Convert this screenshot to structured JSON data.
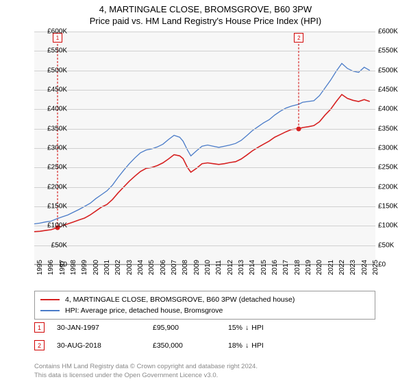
{
  "title": {
    "main": "4, MARTINGALE CLOSE, BROMSGROVE, B60 3PW",
    "sub": "Price paid vs. HM Land Registry's House Price Index (HPI)"
  },
  "chart": {
    "type": "line",
    "background_color": "#f7f7f7",
    "grid_color": "#d0d0d0",
    "ylim": [
      0,
      600000
    ],
    "ytick_step": 50000,
    "yticks": [
      "£0",
      "£50K",
      "£100K",
      "£150K",
      "£200K",
      "£250K",
      "£300K",
      "£350K",
      "£400K",
      "£450K",
      "£500K",
      "£550K",
      "£600K"
    ],
    "x_years": [
      1995,
      1996,
      1997,
      1998,
      1999,
      2000,
      2001,
      2002,
      2003,
      2004,
      2005,
      2006,
      2007,
      2008,
      2009,
      2010,
      2011,
      2012,
      2013,
      2014,
      2015,
      2016,
      2017,
      2018,
      2019,
      2020,
      2021,
      2022,
      2023,
      2024,
      2025
    ],
    "xlim": [
      1995,
      2025.5
    ],
    "series": [
      {
        "name": "price_paid",
        "label": "4, MARTINGALE CLOSE, BROMSGROVE, B60 3PW (detached house)",
        "color": "#d62020",
        "line_width": 1.6,
        "points": [
          [
            1995.0,
            85000
          ],
          [
            1995.5,
            86000
          ],
          [
            1996.0,
            88000
          ],
          [
            1996.5,
            90000
          ],
          [
            1997.1,
            95900
          ],
          [
            1997.5,
            100000
          ],
          [
            1998.0,
            105000
          ],
          [
            1998.5,
            110000
          ],
          [
            1999.0,
            115000
          ],
          [
            1999.5,
            120000
          ],
          [
            2000.0,
            128000
          ],
          [
            2000.5,
            138000
          ],
          [
            2001.0,
            148000
          ],
          [
            2001.5,
            155000
          ],
          [
            2002.0,
            168000
          ],
          [
            2002.5,
            185000
          ],
          [
            2003.0,
            200000
          ],
          [
            2003.5,
            215000
          ],
          [
            2004.0,
            228000
          ],
          [
            2004.5,
            240000
          ],
          [
            2005.0,
            248000
          ],
          [
            2005.5,
            250000
          ],
          [
            2006.0,
            255000
          ],
          [
            2006.5,
            262000
          ],
          [
            2007.0,
            272000
          ],
          [
            2007.5,
            283000
          ],
          [
            2008.0,
            280000
          ],
          [
            2008.3,
            273000
          ],
          [
            2008.7,
            250000
          ],
          [
            2009.0,
            238000
          ],
          [
            2009.5,
            248000
          ],
          [
            2010.0,
            260000
          ],
          [
            2010.5,
            262000
          ],
          [
            2011.0,
            260000
          ],
          [
            2011.5,
            258000
          ],
          [
            2012.0,
            260000
          ],
          [
            2012.5,
            263000
          ],
          [
            2013.0,
            265000
          ],
          [
            2013.5,
            272000
          ],
          [
            2014.0,
            282000
          ],
          [
            2014.5,
            293000
          ],
          [
            2015.0,
            302000
          ],
          [
            2015.5,
            310000
          ],
          [
            2016.0,
            318000
          ],
          [
            2016.5,
            328000
          ],
          [
            2017.0,
            335000
          ],
          [
            2017.5,
            342000
          ],
          [
            2018.0,
            348000
          ],
          [
            2018.66,
            350000
          ],
          [
            2019.0,
            353000
          ],
          [
            2019.5,
            355000
          ],
          [
            2020.0,
            358000
          ],
          [
            2020.5,
            368000
          ],
          [
            2021.0,
            385000
          ],
          [
            2021.5,
            400000
          ],
          [
            2022.0,
            420000
          ],
          [
            2022.5,
            438000
          ],
          [
            2023.0,
            428000
          ],
          [
            2023.5,
            423000
          ],
          [
            2024.0,
            420000
          ],
          [
            2024.5,
            425000
          ],
          [
            2025.0,
            420000
          ]
        ]
      },
      {
        "name": "hpi",
        "label": "HPI: Average price, detached house, Bromsgrove",
        "color": "#4a7bc8",
        "line_width": 1.3,
        "points": [
          [
            1995.0,
            105000
          ],
          [
            1995.5,
            107000
          ],
          [
            1996.0,
            110000
          ],
          [
            1996.5,
            112000
          ],
          [
            1997.0,
            118000
          ],
          [
            1997.5,
            123000
          ],
          [
            1998.0,
            128000
          ],
          [
            1998.5,
            135000
          ],
          [
            1999.0,
            142000
          ],
          [
            1999.5,
            150000
          ],
          [
            2000.0,
            158000
          ],
          [
            2000.5,
            170000
          ],
          [
            2001.0,
            180000
          ],
          [
            2001.5,
            190000
          ],
          [
            2002.0,
            205000
          ],
          [
            2002.5,
            225000
          ],
          [
            2003.0,
            243000
          ],
          [
            2003.5,
            260000
          ],
          [
            2004.0,
            275000
          ],
          [
            2004.5,
            288000
          ],
          [
            2005.0,
            295000
          ],
          [
            2005.5,
            298000
          ],
          [
            2006.0,
            303000
          ],
          [
            2006.5,
            310000
          ],
          [
            2007.0,
            322000
          ],
          [
            2007.5,
            333000
          ],
          [
            2008.0,
            328000
          ],
          [
            2008.3,
            318000
          ],
          [
            2008.7,
            295000
          ],
          [
            2009.0,
            280000
          ],
          [
            2009.5,
            293000
          ],
          [
            2010.0,
            305000
          ],
          [
            2010.5,
            308000
          ],
          [
            2011.0,
            305000
          ],
          [
            2011.5,
            302000
          ],
          [
            2012.0,
            305000
          ],
          [
            2012.5,
            308000
          ],
          [
            2013.0,
            312000
          ],
          [
            2013.5,
            320000
          ],
          [
            2014.0,
            332000
          ],
          [
            2014.5,
            345000
          ],
          [
            2015.0,
            355000
          ],
          [
            2015.5,
            365000
          ],
          [
            2016.0,
            373000
          ],
          [
            2016.5,
            385000
          ],
          [
            2017.0,
            395000
          ],
          [
            2017.5,
            403000
          ],
          [
            2018.0,
            408000
          ],
          [
            2018.66,
            413000
          ],
          [
            2019.0,
            418000
          ],
          [
            2019.5,
            420000
          ],
          [
            2020.0,
            422000
          ],
          [
            2020.5,
            435000
          ],
          [
            2021.0,
            455000
          ],
          [
            2021.5,
            475000
          ],
          [
            2022.0,
            498000
          ],
          [
            2022.5,
            518000
          ],
          [
            2023.0,
            505000
          ],
          [
            2023.5,
            498000
          ],
          [
            2024.0,
            495000
          ],
          [
            2024.5,
            508000
          ],
          [
            2025.0,
            500000
          ]
        ]
      }
    ],
    "sale_markers": [
      {
        "num": "1",
        "year": 1997.083,
        "price": 95900
      },
      {
        "num": "2",
        "year": 2018.66,
        "price": 350000
      }
    ]
  },
  "legend": {
    "items": [
      {
        "color": "#d62020",
        "label": "4, MARTINGALE CLOSE, BROMSGROVE, B60 3PW (detached house)"
      },
      {
        "color": "#4a7bc8",
        "label": "HPI: Average price, detached house, Bromsgrove"
      }
    ]
  },
  "sales": [
    {
      "num": "1",
      "date": "30-JAN-1997",
      "price": "£95,900",
      "delta_pct": "15%",
      "delta_dir": "↓",
      "delta_ref": "HPI"
    },
    {
      "num": "2",
      "date": "30-AUG-2018",
      "price": "£350,000",
      "delta_pct": "18%",
      "delta_dir": "↓",
      "delta_ref": "HPI"
    }
  ],
  "footer": {
    "line1": "Contains HM Land Registry data © Crown copyright and database right 2024.",
    "line2": "This data is licensed under the Open Government Licence v3.0."
  }
}
